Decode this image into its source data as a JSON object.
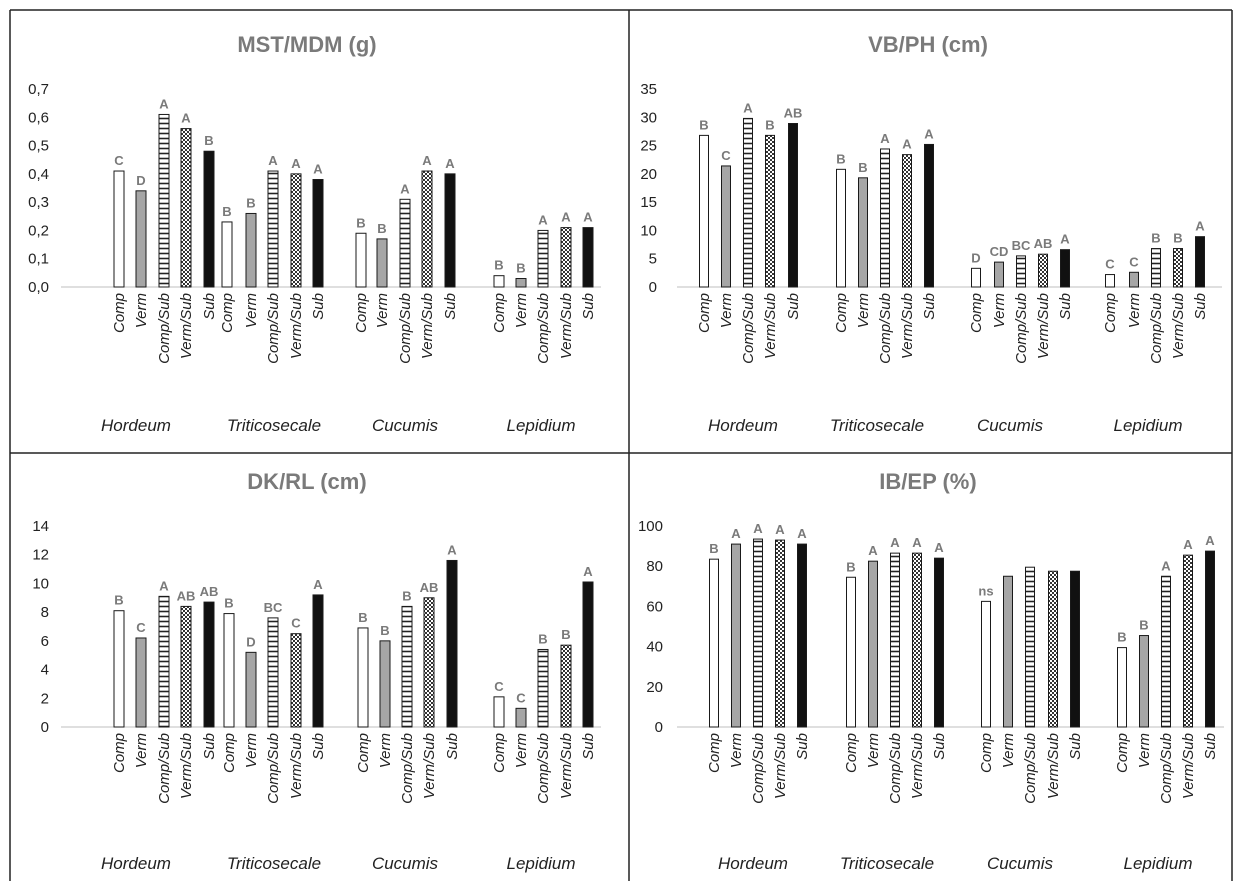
{
  "figure": {
    "colors": {
      "border": "#222222",
      "title": "#7a7a7a",
      "letters": "#7a7a7a",
      "gray_fill": "#a6a6a6",
      "dark_fill": "#111111",
      "axis": "#bfbfbf"
    }
  },
  "chart_data": [
    {
      "type": "bar",
      "title": "MST/MDM (g)",
      "ylim": [
        0,
        0.7
      ],
      "yticks": [
        "0,0",
        "0,1",
        "0,2",
        "0,3",
        "0,4",
        "0,5",
        "0,6",
        "0,7"
      ],
      "groups": [
        "Hordeum",
        "Triticosecale",
        "Cucumis",
        "Lepidium"
      ],
      "categories": [
        "Comp",
        "Verm",
        "Comp/Sub",
        "Verm/Sub",
        "Sub"
      ],
      "values": [
        [
          0.41,
          0.34,
          0.61,
          0.56,
          0.48
        ],
        [
          0.23,
          0.26,
          0.41,
          0.4,
          0.38
        ],
        [
          0.19,
          0.17,
          0.31,
          0.41,
          0.4
        ],
        [
          0.04,
          0.03,
          0.2,
          0.21,
          0.21
        ]
      ],
      "letters": [
        [
          "C",
          "D",
          "A",
          "A",
          "B"
        ],
        [
          "B",
          "B",
          "A",
          "A",
          "A"
        ],
        [
          "B",
          "B",
          "A",
          "A",
          "A"
        ],
        [
          "B",
          "B",
          "A",
          "A",
          "A"
        ]
      ],
      "grid": false
    },
    {
      "type": "bar",
      "title": "VB/PH (cm)",
      "ylim": [
        0,
        35
      ],
      "yticks": [
        "0",
        "5",
        "10",
        "15",
        "20",
        "25",
        "30",
        "35"
      ],
      "groups": [
        "Hordeum",
        "Triticosecale",
        "Cucumis",
        "Lepidium"
      ],
      "categories": [
        "Comp",
        "Verm",
        "Comp/Sub",
        "Verm/Sub",
        "Sub"
      ],
      "values": [
        [
          26.8,
          21.4,
          29.8,
          26.8,
          28.9
        ],
        [
          20.8,
          19.3,
          24.4,
          23.4,
          25.2
        ],
        [
          3.3,
          4.4,
          5.5,
          5.8,
          6.6
        ],
        [
          2.2,
          2.6,
          6.8,
          6.8,
          8.9
        ]
      ],
      "letters": [
        [
          "B",
          "C",
          "A",
          "B",
          "AB"
        ],
        [
          "B",
          "B",
          "A",
          "A",
          "A"
        ],
        [
          "D",
          "CD",
          "BC",
          "AB",
          "A"
        ],
        [
          "C",
          "C",
          "B",
          "B",
          "A"
        ]
      ],
      "grid": false
    },
    {
      "type": "bar",
      "title": "DK/RL (cm)",
      "ylim": [
        0,
        14
      ],
      "yticks": [
        "0",
        "2",
        "4",
        "6",
        "8",
        "10",
        "12",
        "14"
      ],
      "groups": [
        "Hordeum",
        "Triticosecale",
        "Cucumis",
        "Lepidium"
      ],
      "categories": [
        "Comp",
        "Verm",
        "Comp/Sub",
        "Verm/Sub",
        "Sub"
      ],
      "values": [
        [
          8.1,
          6.2,
          9.1,
          8.4,
          8.7
        ],
        [
          7.9,
          5.2,
          7.6,
          6.5,
          9.2
        ],
        [
          6.9,
          6.0,
          8.4,
          9.0,
          11.6
        ],
        [
          2.1,
          1.3,
          5.4,
          5.7,
          10.1
        ]
      ],
      "letters": [
        [
          "B",
          "C",
          "A",
          "AB",
          "AB"
        ],
        [
          "B",
          "D",
          "BC",
          "C",
          "A"
        ],
        [
          "B",
          "B",
          "B",
          "AB",
          "A"
        ],
        [
          "C",
          "C",
          "B",
          "B",
          "A"
        ]
      ],
      "grid": false
    },
    {
      "type": "bar",
      "title": "IB/EP (%)",
      "ylim": [
        0,
        100
      ],
      "yticks": [
        "0",
        "20",
        "40",
        "60",
        "80",
        "100"
      ],
      "groups": [
        "Hordeum",
        "Triticosecale",
        "Cucumis",
        "Lepidium"
      ],
      "categories": [
        "Comp",
        "Verm",
        "Comp/Sub",
        "Verm/Sub",
        "Sub"
      ],
      "values": [
        [
          83.5,
          91.0,
          93.5,
          93.0,
          91.0
        ],
        [
          74.5,
          82.5,
          86.5,
          86.5,
          84.0
        ],
        [
          62.5,
          75.0,
          79.5,
          77.5,
          77.5
        ],
        [
          39.5,
          45.5,
          75.0,
          85.5,
          87.5
        ]
      ],
      "letters": [
        [
          "B",
          "A",
          "A",
          "A",
          "A"
        ],
        [
          "B",
          "A",
          "A",
          "A",
          "A"
        ],
        [
          "ns",
          "",
          "",
          "",
          ""
        ],
        [
          "B",
          "B",
          "A",
          "A",
          "A"
        ]
      ],
      "grid": false
    }
  ]
}
